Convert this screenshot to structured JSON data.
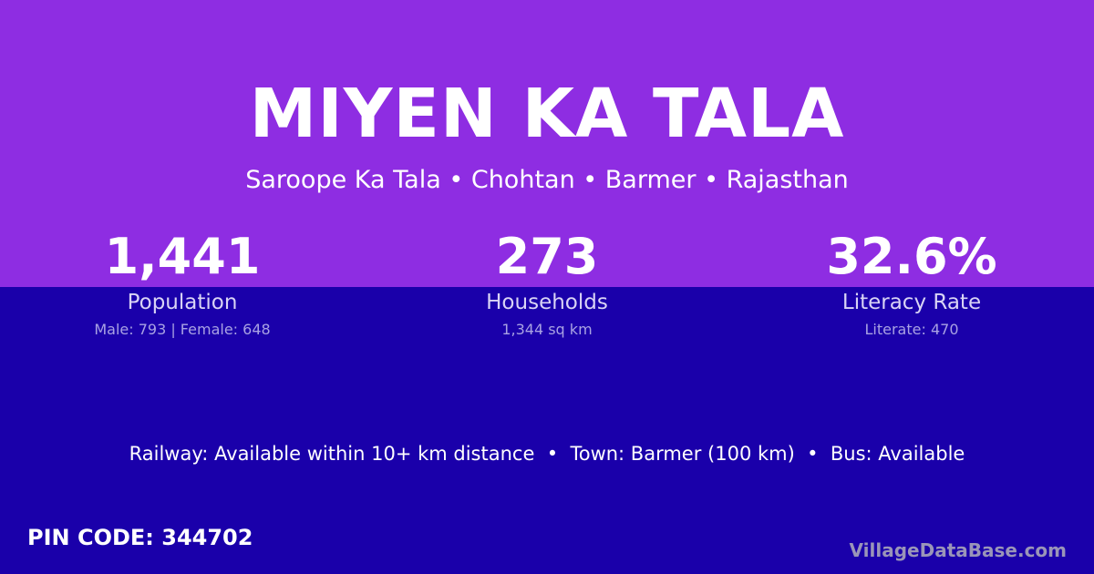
{
  "colors": {
    "top_band": "#8e2de2",
    "bottom_band": "#1a00aa"
  },
  "title": "MIYEN KA TALA",
  "location": "Saroope Ka Tala • Chohtan • Barmer • Rajasthan",
  "stats": [
    {
      "value": "1,441",
      "label": "Population",
      "detail": "Male: 793 | Female: 648"
    },
    {
      "value": "273",
      "label": "Households",
      "detail": "1,344 sq km"
    },
    {
      "value": "32.6%",
      "label": "Literacy Rate",
      "detail": "Literate: 470"
    }
  ],
  "connectivity": "Railway: Available within 10+ km distance  •  Town: Barmer (100 km)  •  Bus: Available",
  "pin_code": "PIN CODE: 344702",
  "brand": "VillageDataBase.com"
}
